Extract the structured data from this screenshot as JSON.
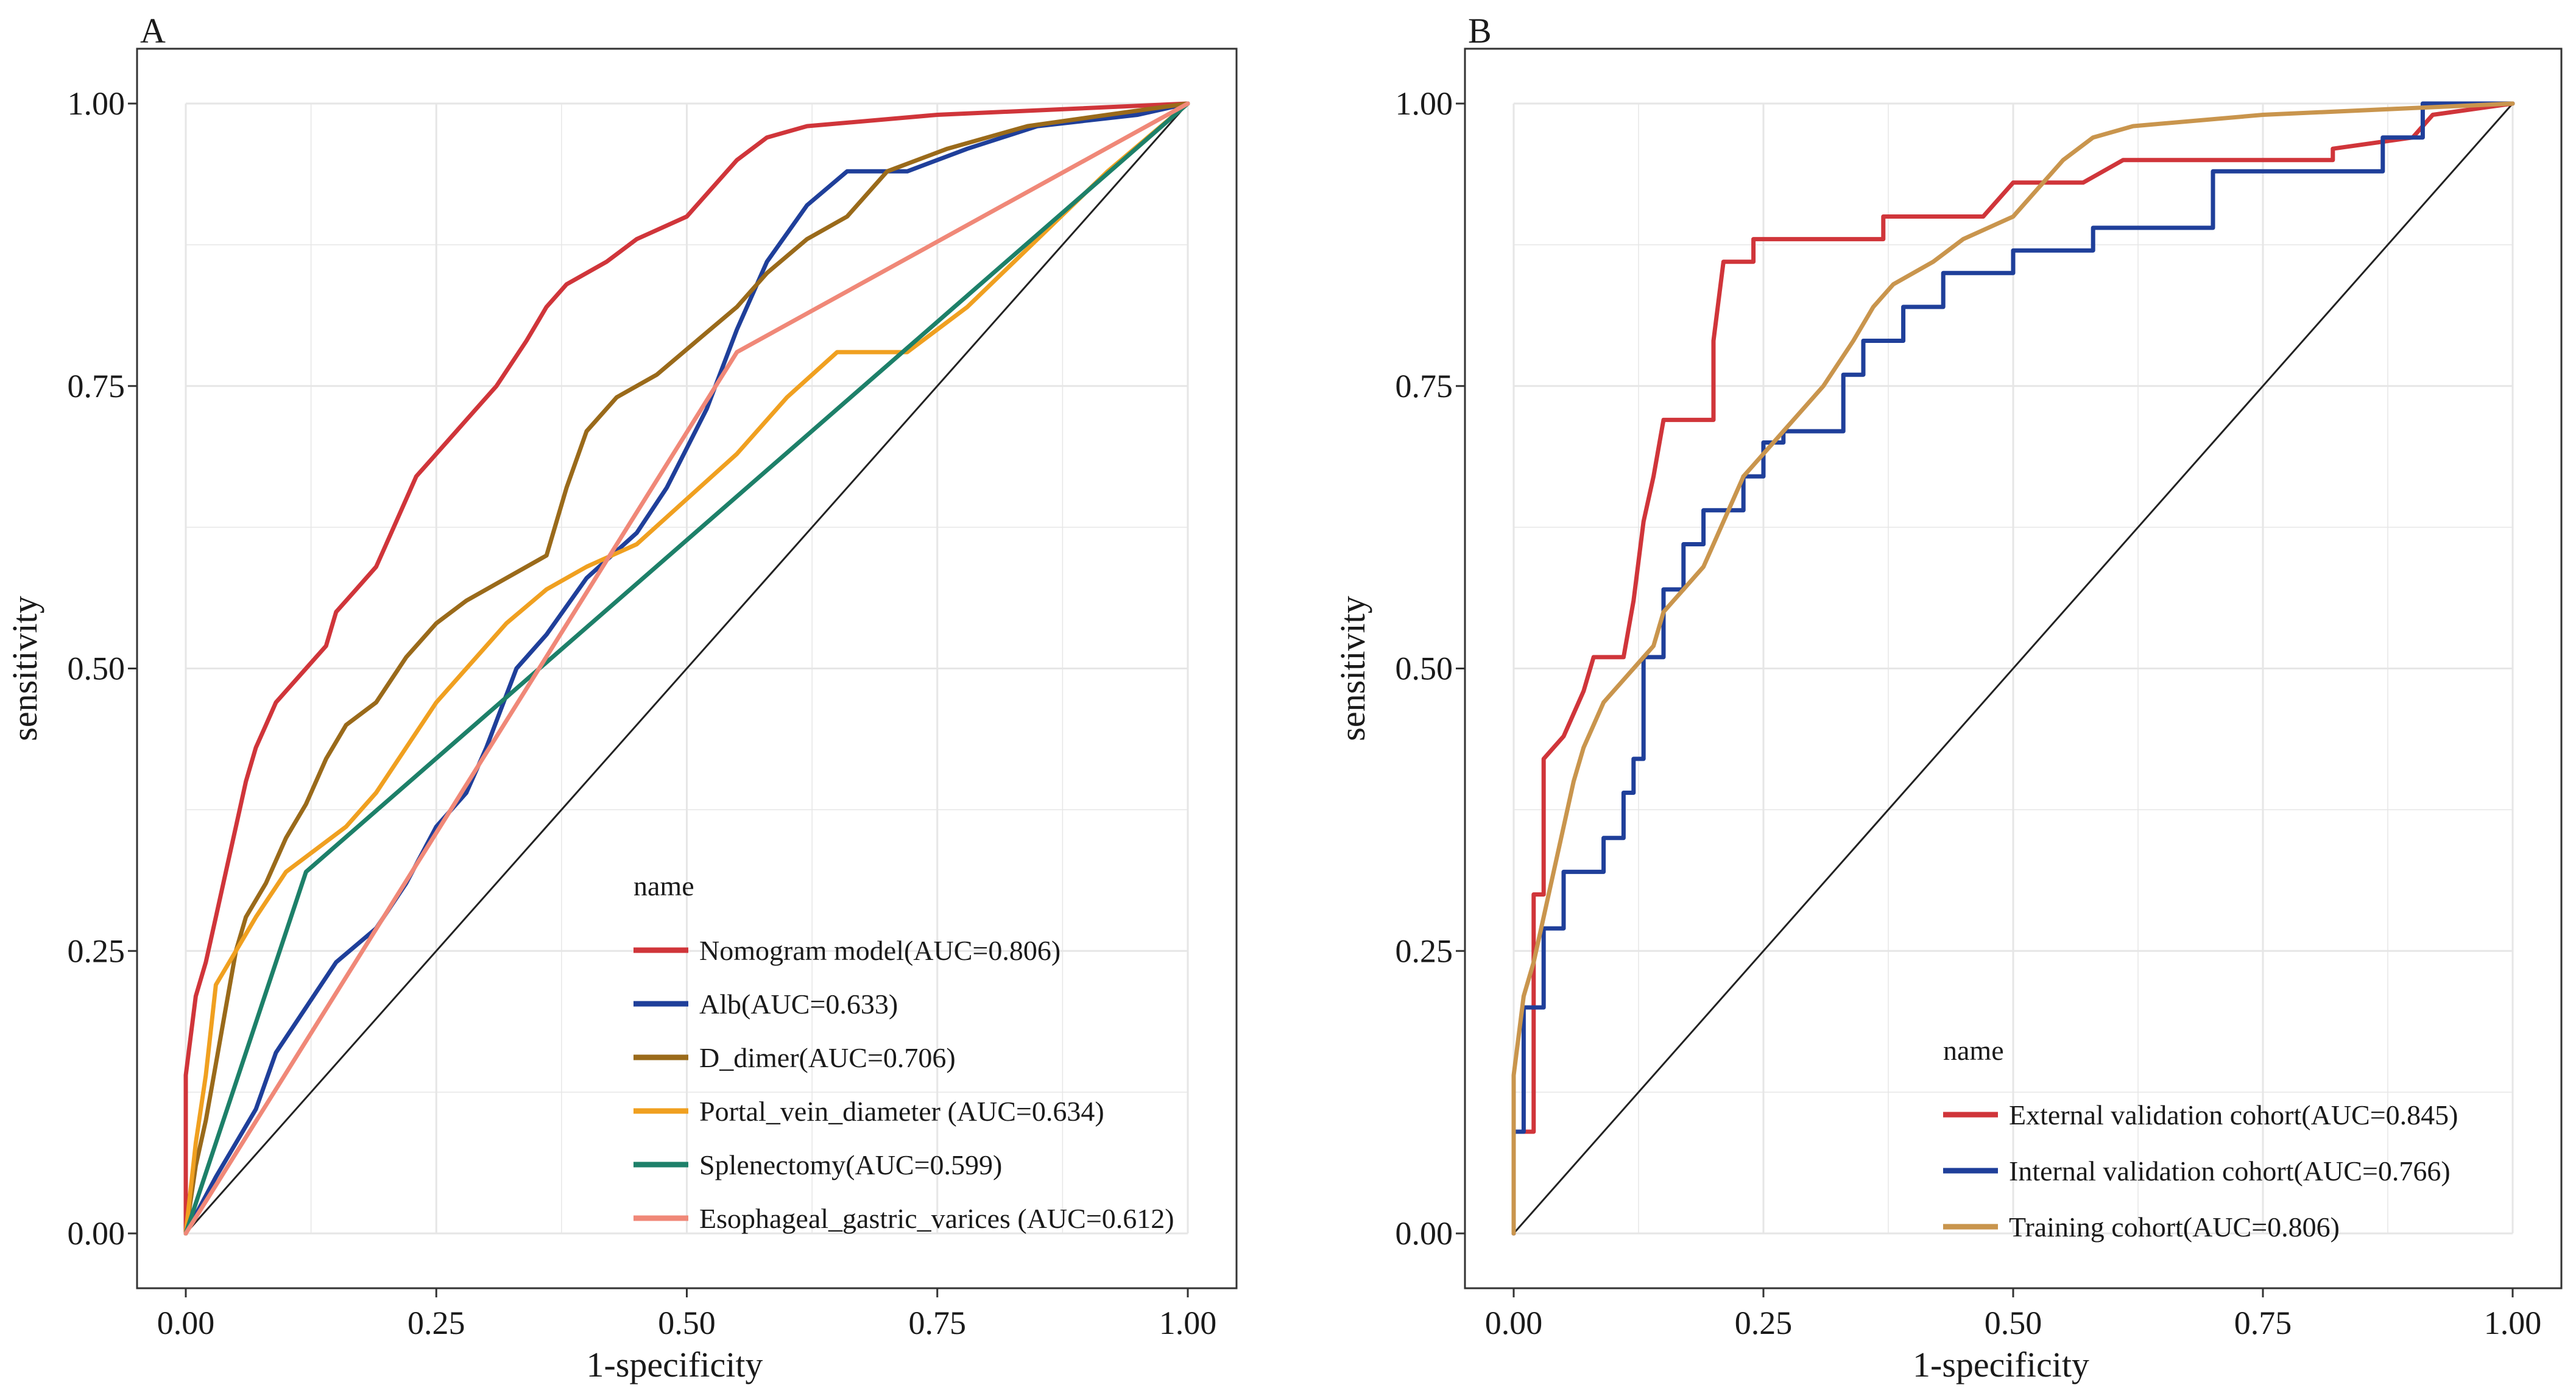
{
  "colors": {
    "grid": "#e6e6e6",
    "axis": "#333333",
    "diagonal": "#222222"
  },
  "chart_data": [
    {
      "panel_label": "A",
      "type": "line",
      "title": "",
      "xlabel": "1-specificity",
      "ylabel": "sensitivity",
      "xlim": [
        0,
        1
      ],
      "ylim": [
        0,
        1
      ],
      "xticks": [
        "0.00",
        "0.25",
        "0.50",
        "0.75",
        "1.00"
      ],
      "yticks": [
        "0.00",
        "0.25",
        "0.50",
        "0.75",
        "1.00"
      ],
      "grid": true,
      "legend_title": "name",
      "legend_position": "bottom-right",
      "reference_line": [
        [
          0,
          0
        ],
        [
          1,
          1
        ]
      ],
      "series": [
        {
          "name": "Nomogram model(AUC=0.806)",
          "color": "#d0353a",
          "points": [
            [
              0,
              0
            ],
            [
              0,
              0.14
            ],
            [
              0.01,
              0.21
            ],
            [
              0.02,
              0.24
            ],
            [
              0.03,
              0.28
            ],
            [
              0.04,
              0.32
            ],
            [
              0.05,
              0.36
            ],
            [
              0.06,
              0.4
            ],
            [
              0.07,
              0.43
            ],
            [
              0.08,
              0.45
            ],
            [
              0.09,
              0.47
            ],
            [
              0.1,
              0.48
            ],
            [
              0.12,
              0.5
            ],
            [
              0.14,
              0.52
            ],
            [
              0.15,
              0.55
            ],
            [
              0.17,
              0.57
            ],
            [
              0.19,
              0.59
            ],
            [
              0.2,
              0.61
            ],
            [
              0.21,
              0.63
            ],
            [
              0.22,
              0.65
            ],
            [
              0.23,
              0.67
            ],
            [
              0.25,
              0.69
            ],
            [
              0.27,
              0.71
            ],
            [
              0.29,
              0.73
            ],
            [
              0.31,
              0.75
            ],
            [
              0.34,
              0.79
            ],
            [
              0.36,
              0.82
            ],
            [
              0.38,
              0.84
            ],
            [
              0.42,
              0.86
            ],
            [
              0.45,
              0.88
            ],
            [
              0.5,
              0.9
            ],
            [
              0.52,
              0.92
            ],
            [
              0.55,
              0.95
            ],
            [
              0.58,
              0.97
            ],
            [
              0.62,
              0.98
            ],
            [
              0.75,
              0.99
            ],
            [
              1.0,
              1.0
            ]
          ]
        },
        {
          "name": "Alb(AUC=0.633)",
          "color": "#1f3f9a",
          "points": [
            [
              0,
              0
            ],
            [
              0.03,
              0.05
            ],
            [
              0.05,
              0.08
            ],
            [
              0.07,
              0.11
            ],
            [
              0.09,
              0.16
            ],
            [
              0.12,
              0.2
            ],
            [
              0.15,
              0.24
            ],
            [
              0.19,
              0.27
            ],
            [
              0.22,
              0.31
            ],
            [
              0.25,
              0.36
            ],
            [
              0.28,
              0.39
            ],
            [
              0.3,
              0.43
            ],
            [
              0.33,
              0.5
            ],
            [
              0.36,
              0.53
            ],
            [
              0.4,
              0.58
            ],
            [
              0.45,
              0.62
            ],
            [
              0.48,
              0.66
            ],
            [
              0.52,
              0.73
            ],
            [
              0.55,
              0.8
            ],
            [
              0.58,
              0.86
            ],
            [
              0.62,
              0.91
            ],
            [
              0.66,
              0.94
            ],
            [
              0.72,
              0.94
            ],
            [
              0.78,
              0.96
            ],
            [
              0.85,
              0.98
            ],
            [
              0.95,
              0.99
            ],
            [
              1.0,
              1.0
            ]
          ]
        },
        {
          "name": "D_dimer(AUC=0.706)",
          "color": "#9a6a1a",
          "points": [
            [
              0,
              0
            ],
            [
              0.01,
              0.06
            ],
            [
              0.02,
              0.1
            ],
            [
              0.03,
              0.15
            ],
            [
              0.04,
              0.2
            ],
            [
              0.05,
              0.25
            ],
            [
              0.06,
              0.28
            ],
            [
              0.08,
              0.31
            ],
            [
              0.1,
              0.35
            ],
            [
              0.12,
              0.38
            ],
            [
              0.14,
              0.42
            ],
            [
              0.16,
              0.45
            ],
            [
              0.19,
              0.47
            ],
            [
              0.22,
              0.51
            ],
            [
              0.25,
              0.54
            ],
            [
              0.28,
              0.56
            ],
            [
              0.32,
              0.58
            ],
            [
              0.36,
              0.6
            ],
            [
              0.38,
              0.66
            ],
            [
              0.4,
              0.71
            ],
            [
              0.43,
              0.74
            ],
            [
              0.47,
              0.76
            ],
            [
              0.51,
              0.79
            ],
            [
              0.55,
              0.82
            ],
            [
              0.58,
              0.85
            ],
            [
              0.62,
              0.88
            ],
            [
              0.66,
              0.9
            ],
            [
              0.7,
              0.94
            ],
            [
              0.76,
              0.96
            ],
            [
              0.84,
              0.98
            ],
            [
              0.92,
              0.99
            ],
            [
              1.0,
              1.0
            ]
          ]
        },
        {
          "name": "Portal_vein_diameter (AUC=0.634)",
          "color": "#f0a020",
          "points": [
            [
              0,
              0
            ],
            [
              0.01,
              0.08
            ],
            [
              0.02,
              0.14
            ],
            [
              0.03,
              0.22
            ],
            [
              0.05,
              0.25
            ],
            [
              0.07,
              0.28
            ],
            [
              0.1,
              0.32
            ],
            [
              0.13,
              0.34
            ],
            [
              0.16,
              0.36
            ],
            [
              0.19,
              0.39
            ],
            [
              0.22,
              0.43
            ],
            [
              0.25,
              0.47
            ],
            [
              0.28,
              0.5
            ],
            [
              0.32,
              0.54
            ],
            [
              0.36,
              0.57
            ],
            [
              0.4,
              0.59
            ],
            [
              0.45,
              0.61
            ],
            [
              0.5,
              0.65
            ],
            [
              0.55,
              0.69
            ],
            [
              0.6,
              0.74
            ],
            [
              0.65,
              0.78
            ],
            [
              0.72,
              0.78
            ],
            [
              0.78,
              0.82
            ],
            [
              0.85,
              0.88
            ],
            [
              0.92,
              0.94
            ],
            [
              1.0,
              1.0
            ]
          ]
        },
        {
          "name": "Splenectomy(AUC=0.599)",
          "color": "#1d8069",
          "points": [
            [
              0,
              0
            ],
            [
              0.12,
              0.32
            ],
            [
              1.0,
              1.0
            ]
          ]
        },
        {
          "name": "Esophageal_gastric_varices (AUC=0.612)",
          "color": "#f08878",
          "points": [
            [
              0,
              0
            ],
            [
              0.55,
              0.78
            ],
            [
              1.0,
              1.0
            ]
          ]
        }
      ]
    },
    {
      "panel_label": "B",
      "type": "line",
      "title": "",
      "xlabel": "1-specificity",
      "ylabel": "sensitivity",
      "xlim": [
        0,
        1
      ],
      "ylim": [
        0,
        1
      ],
      "xticks": [
        "0.00",
        "0.25",
        "0.50",
        "0.75",
        "1.00"
      ],
      "yticks": [
        "0.00",
        "0.25",
        "0.50",
        "0.75",
        "1.00"
      ],
      "grid": true,
      "legend_title": "name",
      "legend_position": "bottom-right",
      "reference_line": [
        [
          0,
          0
        ],
        [
          1,
          1
        ]
      ],
      "series": [
        {
          "name": "External validation cohort(AUC=0.845)",
          "color": "#d0353a",
          "points": [
            [
              0,
              0
            ],
            [
              0,
              0.09
            ],
            [
              0.02,
              0.09
            ],
            [
              0.02,
              0.3
            ],
            [
              0.03,
              0.3
            ],
            [
              0.03,
              0.42
            ],
            [
              0.05,
              0.44
            ],
            [
              0.06,
              0.46
            ],
            [
              0.07,
              0.48
            ],
            [
              0.08,
              0.51
            ],
            [
              0.11,
              0.51
            ],
            [
              0.12,
              0.56
            ],
            [
              0.13,
              0.63
            ],
            [
              0.14,
              0.67
            ],
            [
              0.15,
              0.72
            ],
            [
              0.2,
              0.72
            ],
            [
              0.2,
              0.79
            ],
            [
              0.21,
              0.86
            ],
            [
              0.24,
              0.86
            ],
            [
              0.24,
              0.88
            ],
            [
              0.37,
              0.88
            ],
            [
              0.37,
              0.9
            ],
            [
              0.47,
              0.9
            ],
            [
              0.5,
              0.93
            ],
            [
              0.57,
              0.93
            ],
            [
              0.61,
              0.95
            ],
            [
              0.82,
              0.95
            ],
            [
              0.82,
              0.96
            ],
            [
              0.9,
              0.97
            ],
            [
              0.92,
              0.99
            ],
            [
              1.0,
              1.0
            ]
          ]
        },
        {
          "name": "Internal validation cohort(AUC=0.766)",
          "color": "#1f3f9a",
          "points": [
            [
              0,
              0
            ],
            [
              0,
              0.09
            ],
            [
              0.01,
              0.09
            ],
            [
              0.01,
              0.2
            ],
            [
              0.03,
              0.2
            ],
            [
              0.03,
              0.27
            ],
            [
              0.05,
              0.27
            ],
            [
              0.05,
              0.32
            ],
            [
              0.09,
              0.32
            ],
            [
              0.09,
              0.35
            ],
            [
              0.11,
              0.35
            ],
            [
              0.11,
              0.39
            ],
            [
              0.12,
              0.39
            ],
            [
              0.12,
              0.42
            ],
            [
              0.13,
              0.42
            ],
            [
              0.13,
              0.51
            ],
            [
              0.15,
              0.51
            ],
            [
              0.15,
              0.57
            ],
            [
              0.17,
              0.57
            ],
            [
              0.17,
              0.61
            ],
            [
              0.19,
              0.61
            ],
            [
              0.19,
              0.64
            ],
            [
              0.23,
              0.64
            ],
            [
              0.23,
              0.67
            ],
            [
              0.25,
              0.67
            ],
            [
              0.25,
              0.7
            ],
            [
              0.27,
              0.7
            ],
            [
              0.27,
              0.71
            ],
            [
              0.33,
              0.71
            ],
            [
              0.33,
              0.76
            ],
            [
              0.35,
              0.76
            ],
            [
              0.35,
              0.79
            ],
            [
              0.39,
              0.79
            ],
            [
              0.39,
              0.82
            ],
            [
              0.43,
              0.82
            ],
            [
              0.43,
              0.85
            ],
            [
              0.5,
              0.85
            ],
            [
              0.5,
              0.87
            ],
            [
              0.58,
              0.87
            ],
            [
              0.58,
              0.89
            ],
            [
              0.7,
              0.89
            ],
            [
              0.7,
              0.92
            ],
            [
              0.7,
              0.94
            ],
            [
              0.87,
              0.94
            ],
            [
              0.87,
              0.97
            ],
            [
              0.91,
              0.97
            ],
            [
              0.91,
              1.0
            ],
            [
              1.0,
              1.0
            ]
          ]
        },
        {
          "name": "Training cohort(AUC=0.806)",
          "color": "#c9954d",
          "points": [
            [
              0,
              0
            ],
            [
              0,
              0.14
            ],
            [
              0.01,
              0.21
            ],
            [
              0.02,
              0.24
            ],
            [
              0.03,
              0.28
            ],
            [
              0.04,
              0.32
            ],
            [
              0.05,
              0.36
            ],
            [
              0.06,
              0.4
            ],
            [
              0.07,
              0.43
            ],
            [
              0.08,
              0.45
            ],
            [
              0.09,
              0.47
            ],
            [
              0.1,
              0.48
            ],
            [
              0.12,
              0.5
            ],
            [
              0.14,
              0.52
            ],
            [
              0.15,
              0.55
            ],
            [
              0.17,
              0.57
            ],
            [
              0.19,
              0.59
            ],
            [
              0.2,
              0.61
            ],
            [
              0.21,
              0.63
            ],
            [
              0.22,
              0.65
            ],
            [
              0.23,
              0.67
            ],
            [
              0.25,
              0.69
            ],
            [
              0.27,
              0.71
            ],
            [
              0.29,
              0.73
            ],
            [
              0.31,
              0.75
            ],
            [
              0.34,
              0.79
            ],
            [
              0.36,
              0.82
            ],
            [
              0.38,
              0.84
            ],
            [
              0.42,
              0.86
            ],
            [
              0.45,
              0.88
            ],
            [
              0.5,
              0.9
            ],
            [
              0.52,
              0.92
            ],
            [
              0.55,
              0.95
            ],
            [
              0.58,
              0.97
            ],
            [
              0.62,
              0.98
            ],
            [
              0.75,
              0.99
            ],
            [
              1.0,
              1.0
            ]
          ]
        }
      ]
    }
  ]
}
